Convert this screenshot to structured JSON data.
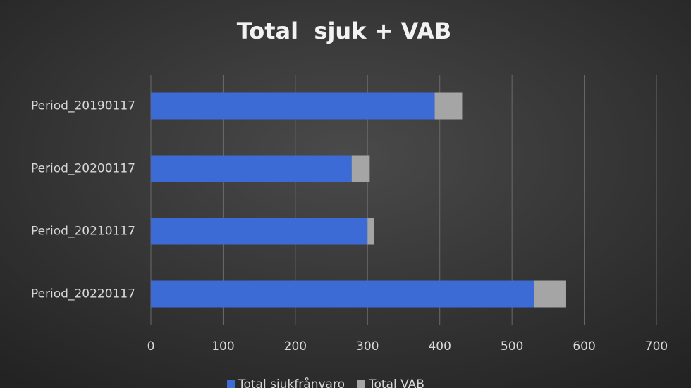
{
  "chart_data": {
    "type": "stacked-bar-horizontal",
    "title": "Total  sjuk + VAB",
    "categories": [
      "Period_20190117",
      "Period_20200117",
      "Period_20210117",
      "Period_20220117"
    ],
    "series": [
      {
        "name": "Total sjukfrånvaro",
        "color": "#3d6bd6",
        "values": [
          393,
          278,
          300,
          531
        ]
      },
      {
        "name": "Total VAB",
        "color": "#a5a5a5",
        "values": [
          38,
          25,
          9,
          44
        ]
      }
    ],
    "xlim": [
      0,
      700
    ],
    "xticks": [
      0,
      100,
      200,
      300,
      400,
      500,
      600,
      700
    ],
    "grid": true,
    "legend": "bottom"
  }
}
